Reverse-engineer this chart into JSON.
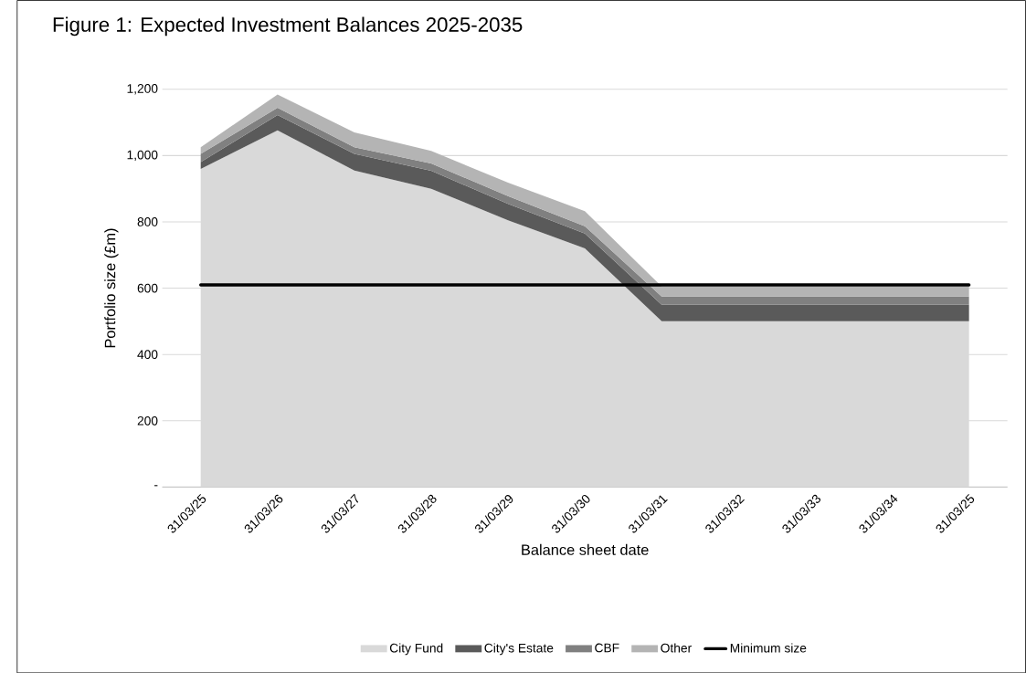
{
  "chart_data": {
    "type": "area",
    "stacked": true,
    "title": "Figure 1: Expected Investment Balances 2025-2035",
    "xlabel": "Balance sheet date",
    "ylabel": "Portfolio size (£m)",
    "categories": [
      "31/03/25",
      "31/03/26",
      "31/03/27",
      "31/03/28",
      "31/03/29",
      "31/03/30",
      "31/03/31",
      "31/03/32",
      "31/03/33",
      "31/03/34",
      "31/03/25"
    ],
    "series": [
      {
        "name": "City Fund",
        "color": "#d9d9d9",
        "values": [
          960,
          1076,
          955,
          900,
          805,
          720,
          500,
          500,
          500,
          500,
          500
        ]
      },
      {
        "name": "City's Estate",
        "color": "#5a5a5a",
        "values": [
          20,
          46,
          50,
          54,
          49,
          45,
          50,
          50,
          50,
          50,
          50
        ]
      },
      {
        "name": "CBF",
        "color": "#808080",
        "values": [
          25,
          22,
          20,
          22,
          24,
          22,
          25,
          25,
          25,
          25,
          25
        ]
      },
      {
        "name": "Other",
        "color": "#b4b4b4",
        "values": [
          20,
          40,
          45,
          38,
          40,
          45,
          30,
          30,
          30,
          30,
          30
        ]
      },
      {
        "name": "Minimum size",
        "type": "line",
        "color": "#000000",
        "values": [
          610,
          610,
          610,
          610,
          610,
          610,
          610,
          610,
          610,
          610,
          610
        ]
      }
    ],
    "ylim": [
      0,
      1200
    ],
    "yticks": [
      {
        "value": 0,
        "label": "-"
      },
      {
        "value": 200,
        "label": "200"
      },
      {
        "value": 400,
        "label": "400"
      },
      {
        "value": 600,
        "label": "600"
      },
      {
        "value": 800,
        "label": "800"
      },
      {
        "value": 1000,
        "label": "1,000"
      },
      {
        "value": 1200,
        "label": "1,200"
      }
    ],
    "grid": "y",
    "legend": "bottom",
    "line_style": "solid",
    "marker": "none"
  }
}
